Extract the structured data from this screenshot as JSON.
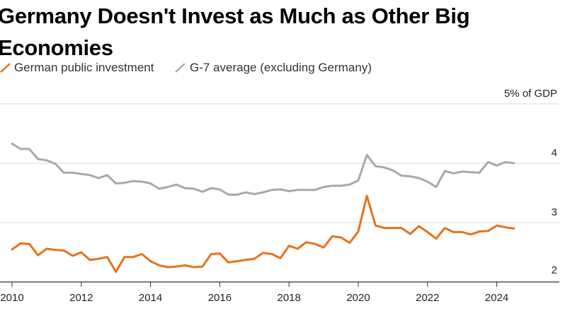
{
  "title": "Germany Doesn't Invest as Much as Other Big Economies",
  "legend": {
    "germany": "German public investment",
    "g7": "G-7 average (excluding Germany)"
  },
  "colors": {
    "germany": "#e8711a",
    "g7": "#a9a9a9",
    "grid": "#d9d9d9",
    "axis": "#333333"
  },
  "chart_data": {
    "type": "line",
    "title": "Germany Doesn't Invest as Much as Other Big Economies",
    "xlabel": "",
    "ylabel": "5% of GDP",
    "ylim": [
      2,
      5
    ],
    "xlim": [
      2010,
      2025.5
    ],
    "y_ticks": [
      2,
      3,
      4
    ],
    "y_tick_labels": [
      "2",
      "3",
      "4"
    ],
    "y_top_label": "5% of GDP",
    "x_ticks": [
      2010,
      2012,
      2014,
      2016,
      2018,
      2020,
      2022,
      2024
    ],
    "x_tick_labels": [
      "2010",
      "2012",
      "2014",
      "2016",
      "2018",
      "2020",
      "2022",
      "2024"
    ],
    "grid": true,
    "legend_position": "top-left",
    "series": [
      {
        "name": "German public investment",
        "color": "#e8711a",
        "x": [
          2010.0,
          2010.25,
          2010.5,
          2010.75,
          2011.0,
          2011.25,
          2011.5,
          2011.75,
          2012.0,
          2012.25,
          2012.5,
          2012.75,
          2013.0,
          2013.25,
          2013.5,
          2013.75,
          2014.0,
          2014.25,
          2014.5,
          2014.75,
          2015.0,
          2015.25,
          2015.5,
          2015.75,
          2016.0,
          2016.25,
          2016.5,
          2016.75,
          2017.0,
          2017.25,
          2017.5,
          2017.75,
          2018.0,
          2018.25,
          2018.5,
          2018.75,
          2019.0,
          2019.25,
          2019.5,
          2019.75,
          2020.0,
          2020.25,
          2020.5,
          2020.75,
          2021.0,
          2021.25,
          2021.5,
          2021.75,
          2022.0,
          2022.25,
          2022.5,
          2022.75,
          2023.0,
          2023.25,
          2023.5,
          2023.75,
          2024.0,
          2024.25,
          2024.5
        ],
        "values": [
          2.55,
          2.65,
          2.64,
          2.45,
          2.56,
          2.54,
          2.53,
          2.44,
          2.5,
          2.37,
          2.39,
          2.42,
          2.17,
          2.42,
          2.42,
          2.47,
          2.35,
          2.28,
          2.25,
          2.26,
          2.28,
          2.25,
          2.26,
          2.47,
          2.48,
          2.33,
          2.35,
          2.37,
          2.39,
          2.49,
          2.47,
          2.4,
          2.61,
          2.56,
          2.67,
          2.64,
          2.58,
          2.77,
          2.75,
          2.66,
          2.85,
          3.45,
          2.95,
          2.91,
          2.91,
          2.91,
          2.81,
          2.94,
          2.84,
          2.73,
          2.91,
          2.84,
          2.84,
          2.8,
          2.85,
          2.86,
          2.95,
          2.92,
          2.9
        ]
      },
      {
        "name": "G-7 average (excluding Germany)",
        "color": "#a9a9a9",
        "x": [
          2010.0,
          2010.25,
          2010.5,
          2010.75,
          2011.0,
          2011.25,
          2011.5,
          2011.75,
          2012.0,
          2012.25,
          2012.5,
          2012.75,
          2013.0,
          2013.25,
          2013.5,
          2013.75,
          2014.0,
          2014.25,
          2014.5,
          2014.75,
          2015.0,
          2015.25,
          2015.5,
          2015.75,
          2016.0,
          2016.25,
          2016.5,
          2016.75,
          2017.0,
          2017.25,
          2017.5,
          2017.75,
          2018.0,
          2018.25,
          2018.5,
          2018.75,
          2019.0,
          2019.25,
          2019.5,
          2019.75,
          2020.0,
          2020.25,
          2020.5,
          2020.75,
          2021.0,
          2021.25,
          2021.5,
          2021.75,
          2022.0,
          2022.25,
          2022.5,
          2022.75,
          2023.0,
          2023.25,
          2023.5,
          2023.75,
          2024.0,
          2024.25,
          2024.5
        ],
        "values": [
          4.33,
          4.24,
          4.24,
          4.07,
          4.05,
          3.99,
          3.84,
          3.84,
          3.82,
          3.8,
          3.75,
          3.8,
          3.66,
          3.67,
          3.7,
          3.69,
          3.66,
          3.57,
          3.6,
          3.64,
          3.58,
          3.57,
          3.52,
          3.58,
          3.56,
          3.47,
          3.47,
          3.51,
          3.48,
          3.51,
          3.55,
          3.56,
          3.53,
          3.55,
          3.55,
          3.55,
          3.6,
          3.62,
          3.62,
          3.64,
          3.71,
          4.14,
          3.95,
          3.93,
          3.88,
          3.79,
          3.78,
          3.75,
          3.69,
          3.6,
          3.87,
          3.83,
          3.86,
          3.85,
          3.84,
          4.02,
          3.96,
          4.02,
          4.0
        ]
      }
    ]
  }
}
